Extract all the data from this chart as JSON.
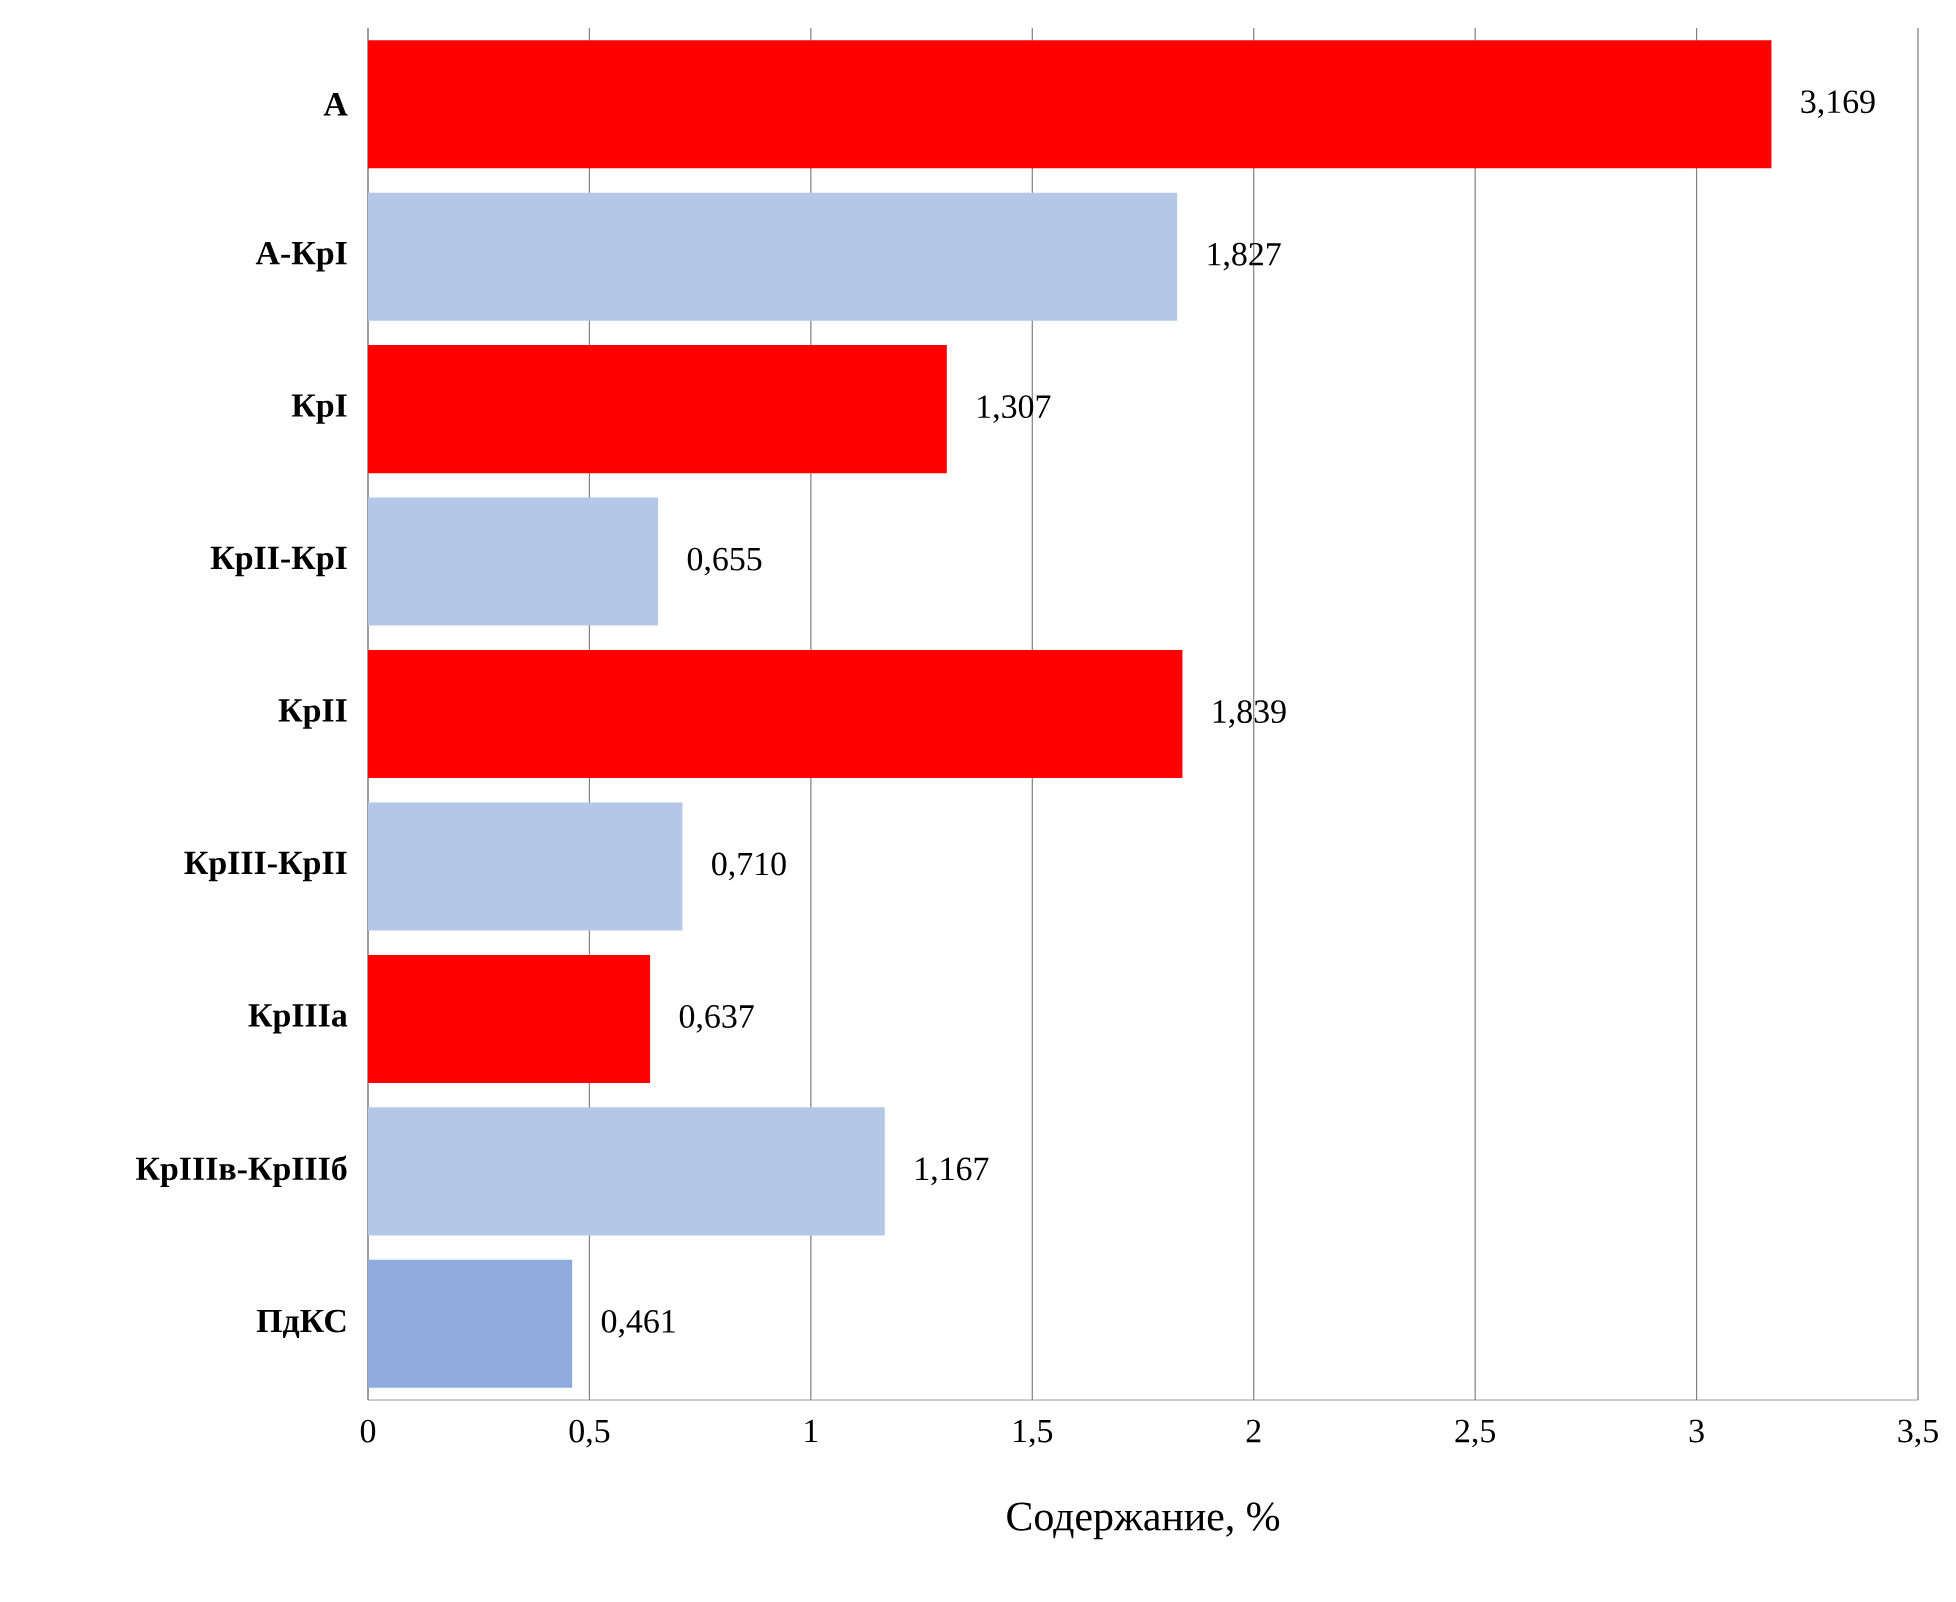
{
  "chart_data": {
    "type": "bar",
    "orientation": "horizontal",
    "xlabel": "Содержание, %",
    "categories": [
      "А",
      "А-КрI",
      "КрI",
      "КрII-КрI",
      "КрII",
      "КрIII-КрII",
      "КрIIIа",
      "КрIIIв-КрIIIб",
      "ПдКС"
    ],
    "values": [
      3.169,
      1.827,
      1.307,
      0.655,
      1.839,
      0.71,
      0.637,
      1.167,
      0.461
    ],
    "value_labels": [
      "3,169",
      "1,827",
      "1,307",
      "0,655",
      "1,839",
      "0,710",
      "0,637",
      "1,167",
      "0,461"
    ],
    "colors": [
      "#ff0000",
      "#b4c7e7",
      "#ff0000",
      "#b4c7e7",
      "#ff0000",
      "#b4c7e7",
      "#ff0000",
      "#b4c7e7",
      "#8faadc"
    ],
    "xlim": [
      0,
      3.5
    ],
    "xticks": [
      0,
      {
        "value": 0.5,
        "label": "0,5"
      },
      1,
      {
        "value": 1.5,
        "label": "1,5"
      },
      2,
      {
        "value": 2.5,
        "label": "2,5"
      },
      3,
      {
        "value": 3.5,
        "label": "3,5"
      }
    ],
    "grid": "x"
  }
}
